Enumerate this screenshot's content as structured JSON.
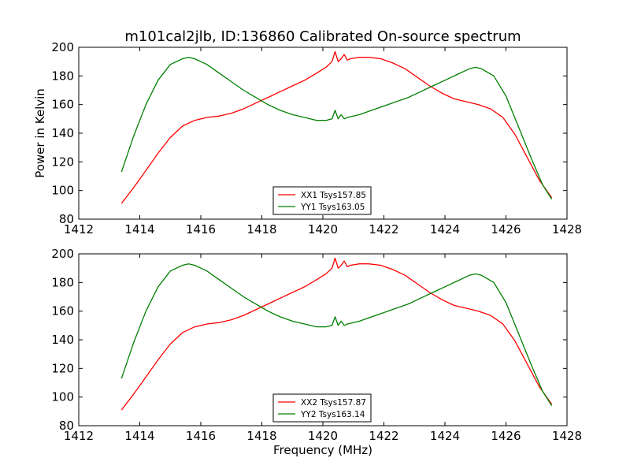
{
  "chart_data": [
    {
      "type": "line",
      "title": "m101cal2jlb, ID:136860 Calibrated On-source spectrum",
      "xlabel": "",
      "ylabel": "Power in Kelvin",
      "xlim": [
        1412,
        1428
      ],
      "ylim": [
        80,
        200
      ],
      "xticks": [
        1412,
        1414,
        1416,
        1418,
        1420,
        1422,
        1424,
        1426,
        1428
      ],
      "yticks": [
        80,
        100,
        120,
        140,
        160,
        180,
        200
      ],
      "grid": false,
      "legend": "bottom-center",
      "series": [
        {
          "name": "XX1 Tsys157.85",
          "color": "#ff0000",
          "x": [
            1413.4,
            1413.8,
            1414.2,
            1414.6,
            1415.0,
            1415.4,
            1415.8,
            1416.2,
            1416.6,
            1417.0,
            1417.4,
            1417.8,
            1418.2,
            1418.6,
            1419.0,
            1419.4,
            1419.8,
            1420.1,
            1420.3,
            1420.4,
            1420.5,
            1420.6,
            1420.7,
            1420.8,
            1420.9,
            1421.2,
            1421.5,
            1421.9,
            1422.3,
            1422.7,
            1423.1,
            1423.5,
            1423.9,
            1424.3,
            1424.7,
            1425.1,
            1425.5,
            1425.9,
            1426.3,
            1426.7,
            1427.1,
            1427.5
          ],
          "y": [
            91,
            102,
            114,
            126,
            137,
            145,
            149,
            151,
            152,
            154,
            157,
            161,
            165,
            169,
            173,
            177,
            182,
            186,
            190,
            197,
            190,
            192,
            195,
            191,
            192,
            193,
            193,
            192,
            189,
            185,
            179,
            173,
            168,
            164,
            162,
            160,
            157,
            151,
            139,
            123,
            107,
            95
          ]
        },
        {
          "name": "YY1 Tsys163.05",
          "color": "#008000",
          "x": [
            1413.4,
            1413.8,
            1414.2,
            1414.6,
            1415.0,
            1415.4,
            1415.6,
            1415.8,
            1416.2,
            1416.6,
            1417.0,
            1417.4,
            1417.8,
            1418.2,
            1418.6,
            1419.0,
            1419.4,
            1419.8,
            1420.1,
            1420.3,
            1420.4,
            1420.5,
            1420.6,
            1420.7,
            1420.8,
            1421.2,
            1421.6,
            1422.0,
            1422.4,
            1422.8,
            1423.2,
            1423.6,
            1424.0,
            1424.4,
            1424.8,
            1425.0,
            1425.2,
            1425.6,
            1426.0,
            1426.4,
            1426.8,
            1427.2,
            1427.5
          ],
          "y": [
            113,
            138,
            160,
            177,
            188,
            192,
            193,
            192,
            188,
            182,
            176,
            170,
            165,
            160,
            156,
            153,
            151,
            149,
            149,
            150,
            156,
            150,
            153,
            150,
            151,
            153,
            156,
            159,
            162,
            165,
            169,
            173,
            177,
            181,
            185,
            186,
            185,
            180,
            166,
            145,
            124,
            104,
            94
          ]
        }
      ]
    },
    {
      "type": "line",
      "title": "",
      "xlabel": "Frequency (MHz)",
      "ylabel": "",
      "xlim": [
        1412,
        1428
      ],
      "ylim": [
        80,
        200
      ],
      "xticks": [
        1412,
        1414,
        1416,
        1418,
        1420,
        1422,
        1424,
        1426,
        1428
      ],
      "yticks": [
        80,
        100,
        120,
        140,
        160,
        180,
        200
      ],
      "grid": false,
      "legend": "bottom-center",
      "series": [
        {
          "name": "XX2 Tsys157.87",
          "color": "#ff0000",
          "x": [
            1413.4,
            1413.8,
            1414.2,
            1414.6,
            1415.0,
            1415.4,
            1415.8,
            1416.2,
            1416.6,
            1417.0,
            1417.4,
            1417.8,
            1418.2,
            1418.6,
            1419.0,
            1419.4,
            1419.8,
            1420.1,
            1420.3,
            1420.4,
            1420.5,
            1420.6,
            1420.7,
            1420.8,
            1420.9,
            1421.2,
            1421.5,
            1421.9,
            1422.3,
            1422.7,
            1423.1,
            1423.5,
            1423.9,
            1424.3,
            1424.7,
            1425.1,
            1425.5,
            1425.9,
            1426.3,
            1426.7,
            1427.1,
            1427.5
          ],
          "y": [
            91,
            102,
            114,
            126,
            137,
            145,
            149,
            151,
            152,
            154,
            157,
            161,
            165,
            169,
            173,
            177,
            182,
            186,
            190,
            197,
            190,
            192,
            195,
            191,
            192,
            193,
            193,
            192,
            189,
            185,
            179,
            173,
            168,
            164,
            162,
            160,
            157,
            151,
            139,
            123,
            107,
            95
          ]
        },
        {
          "name": "YY2 Tsys163.14",
          "color": "#008000",
          "x": [
            1413.4,
            1413.8,
            1414.2,
            1414.6,
            1415.0,
            1415.4,
            1415.6,
            1415.8,
            1416.2,
            1416.6,
            1417.0,
            1417.4,
            1417.8,
            1418.2,
            1418.6,
            1419.0,
            1419.4,
            1419.8,
            1420.1,
            1420.3,
            1420.4,
            1420.5,
            1420.6,
            1420.7,
            1420.8,
            1421.2,
            1421.6,
            1422.0,
            1422.4,
            1422.8,
            1423.2,
            1423.6,
            1424.0,
            1424.4,
            1424.8,
            1425.0,
            1425.2,
            1425.6,
            1426.0,
            1426.4,
            1426.8,
            1427.2,
            1427.5
          ],
          "y": [
            113,
            138,
            160,
            177,
            188,
            192,
            193,
            192,
            188,
            182,
            176,
            170,
            165,
            160,
            156,
            153,
            151,
            149,
            149,
            150,
            156,
            150,
            153,
            150,
            151,
            153,
            156,
            159,
            162,
            165,
            169,
            173,
            177,
            181,
            185,
            186,
            185,
            180,
            166,
            145,
            124,
            104,
            94
          ]
        }
      ]
    }
  ]
}
